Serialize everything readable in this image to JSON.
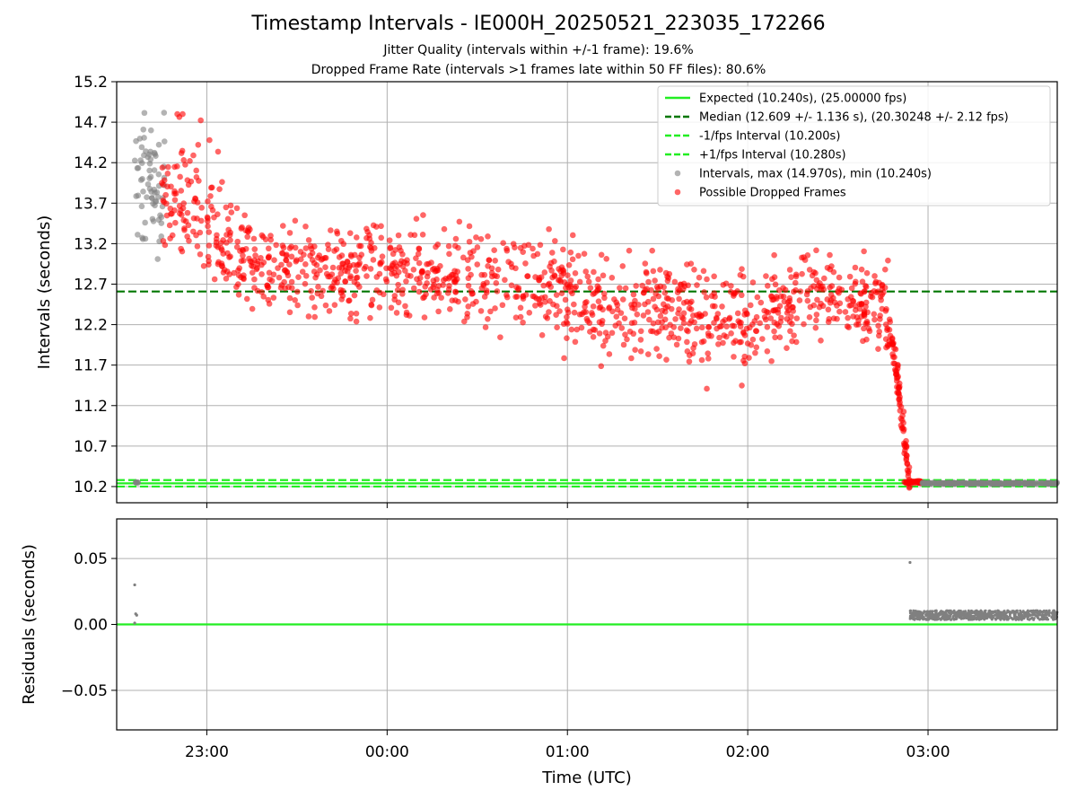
{
  "header": {
    "title": "Timestamp Intervals - IE000H_20250521_223035_172266",
    "subtitle1": "Jitter Quality (intervals within +/-1 frame): 19.6%",
    "subtitle2": "Dropped Frame Rate (intervals >1 frames late within 50 FF files): 80.6%"
  },
  "chart_data": [
    {
      "type": "scatter",
      "ylabel": "Intervals (seconds)",
      "ylim": [
        10.0,
        15.2
      ],
      "yticks": [
        10.2,
        10.7,
        11.2,
        11.7,
        12.2,
        12.7,
        13.2,
        13.7,
        14.2,
        14.7,
        15.2
      ],
      "ytick_labels": [
        "10.2",
        "10.7",
        "11.2",
        "11.7",
        "12.2",
        "12.7",
        "13.2",
        "13.7",
        "14.2",
        "14.7",
        "15.2"
      ],
      "grid": true,
      "legend_position": "top-right",
      "reference_lines": [
        {
          "name": "Expected (10.240s), (25.00000 fps)",
          "y": 10.24,
          "style": "solid",
          "color": "#22ee22"
        },
        {
          "name": "Median (12.609 +/- 1.136 s), (20.30248 +/- 2.12 fps)",
          "y": 12.609,
          "style": "dashed",
          "color": "#007700"
        },
        {
          "name": "-1/fps Interval (10.200s)",
          "y": 10.2,
          "style": "dashed",
          "color": "#22ee22"
        },
        {
          "name": "+1/fps Interval (10.280s)",
          "y": 10.28,
          "style": "dashed",
          "color": "#22ee22"
        }
      ],
      "series": [
        {
          "name": "Intervals, max (14.970s), min (10.240s)",
          "color": "#808080"
        },
        {
          "name": "Possible Dropped Frames",
          "color": "#ff0000"
        }
      ],
      "trend_points": [
        {
          "x": "22:45",
          "y": 13.8
        },
        {
          "x": "22:50",
          "y": 13.7
        },
        {
          "x": "23:00",
          "y": 13.45
        },
        {
          "x": "23:10",
          "y": 13.05
        },
        {
          "x": "23:20",
          "y": 12.9
        },
        {
          "x": "23:30",
          "y": 12.85
        },
        {
          "x": "23:45",
          "y": 12.9
        },
        {
          "x": "00:00",
          "y": 12.85
        },
        {
          "x": "00:15",
          "y": 12.8
        },
        {
          "x": "00:30",
          "y": 12.75
        },
        {
          "x": "00:45",
          "y": 12.75
        },
        {
          "x": "01:00",
          "y": 12.6
        },
        {
          "x": "01:15",
          "y": 12.35
        },
        {
          "x": "01:30",
          "y": 12.45
        },
        {
          "x": "01:45",
          "y": 12.3
        },
        {
          "x": "02:00",
          "y": 12.25
        },
        {
          "x": "02:10",
          "y": 12.4
        },
        {
          "x": "02:20",
          "y": 12.65
        },
        {
          "x": "02:30",
          "y": 12.6
        },
        {
          "x": "02:40",
          "y": 12.5
        },
        {
          "x": "02:45",
          "y": 12.4
        },
        {
          "x": "02:48",
          "y": 12.0
        },
        {
          "x": "02:50",
          "y": 11.5
        },
        {
          "x": "02:52",
          "y": 10.8
        },
        {
          "x": "02:54",
          "y": 10.26
        },
        {
          "x": "03:00",
          "y": 10.24
        }
      ]
    },
    {
      "type": "scatter",
      "xlabel": "Time (UTC)",
      "ylabel": "Residuals (seconds)",
      "ylim": [
        -0.08,
        0.08
      ],
      "yticks": [
        -0.05,
        0.0,
        0.05
      ],
      "ytick_labels": [
        "−0.05",
        "0.00",
        "0.05"
      ],
      "xtick_labels": [
        "23:00",
        "00:00",
        "01:00",
        "02:00",
        "03:00"
      ],
      "xlim": [
        "22:30",
        "03:43"
      ],
      "grid": true,
      "reference_lines": [
        {
          "y": 0.0,
          "style": "solid",
          "color": "#22ee22"
        }
      ],
      "series": [
        {
          "name": "residuals",
          "color": "#808080",
          "points": [
            {
              "x": "22:36:00",
              "y": 0.03
            },
            {
              "x": "22:36:20",
              "y": 0.008
            },
            {
              "x": "22:36:40",
              "y": 0.007
            },
            {
              "x": "22:36:00",
              "y": 0.001
            },
            {
              "x": "02:54:00",
              "y": 0.047
            }
          ],
          "band": {
            "x_start": "02:54",
            "x_end": "03:43",
            "y_center": 0.007
          }
        }
      ]
    }
  ]
}
